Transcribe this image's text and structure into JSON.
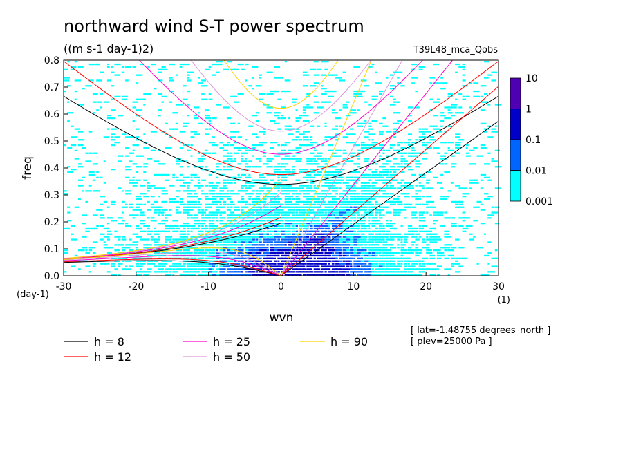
{
  "chart_data": {
    "type": "heatmap",
    "title": "northward wind S-T power spectrum",
    "units": "((m s-1 day-1)2)",
    "run_name": "T39L48_mca_Qobs",
    "xlabel": "wvn",
    "ylabel": "freq",
    "x_unit": "(1)",
    "y_unit": "(day-1)",
    "xlim": [
      -30,
      30
    ],
    "ylim": [
      0,
      0.8
    ],
    "x_ticks": [
      -30,
      -20,
      -10,
      0,
      10,
      20,
      30
    ],
    "x_tick_labels": [
      "-30",
      "-20",
      "-10",
      "0",
      "10",
      "20",
      "30"
    ],
    "y_ticks": [
      0,
      0.1,
      0.2,
      0.3,
      0.4,
      0.5,
      0.6,
      0.7,
      0.8
    ],
    "y_tick_labels": [
      "0.0",
      "0.1",
      "0.2",
      "0.3",
      "0.4",
      "0.5",
      "0.6",
      "0.7",
      "0.8"
    ],
    "colorbar": {
      "labels": [
        "0.001",
        "0.01",
        "0.1",
        "1",
        "10"
      ],
      "colors": [
        "#00ffff",
        "#0064ff",
        "#0000c8",
        "#5000b4"
      ]
    },
    "dispersion_curves": [
      {
        "name": "h =  8",
        "h": 8,
        "color": "#000000"
      },
      {
        "name": "h = 12",
        "h": 12,
        "color": "#ff0000"
      },
      {
        "name": "h = 25",
        "h": 25,
        "color": "#ff00c8"
      },
      {
        "name": "h = 50",
        "h": 50,
        "color": "#dc96dc"
      },
      {
        "name": "h = 90",
        "h": 90,
        "color": "#ffd200"
      }
    ],
    "annotations": [
      "[ lat=-1.48755 degrees_north ]",
      "[ plev=25000 Pa ]"
    ]
  }
}
